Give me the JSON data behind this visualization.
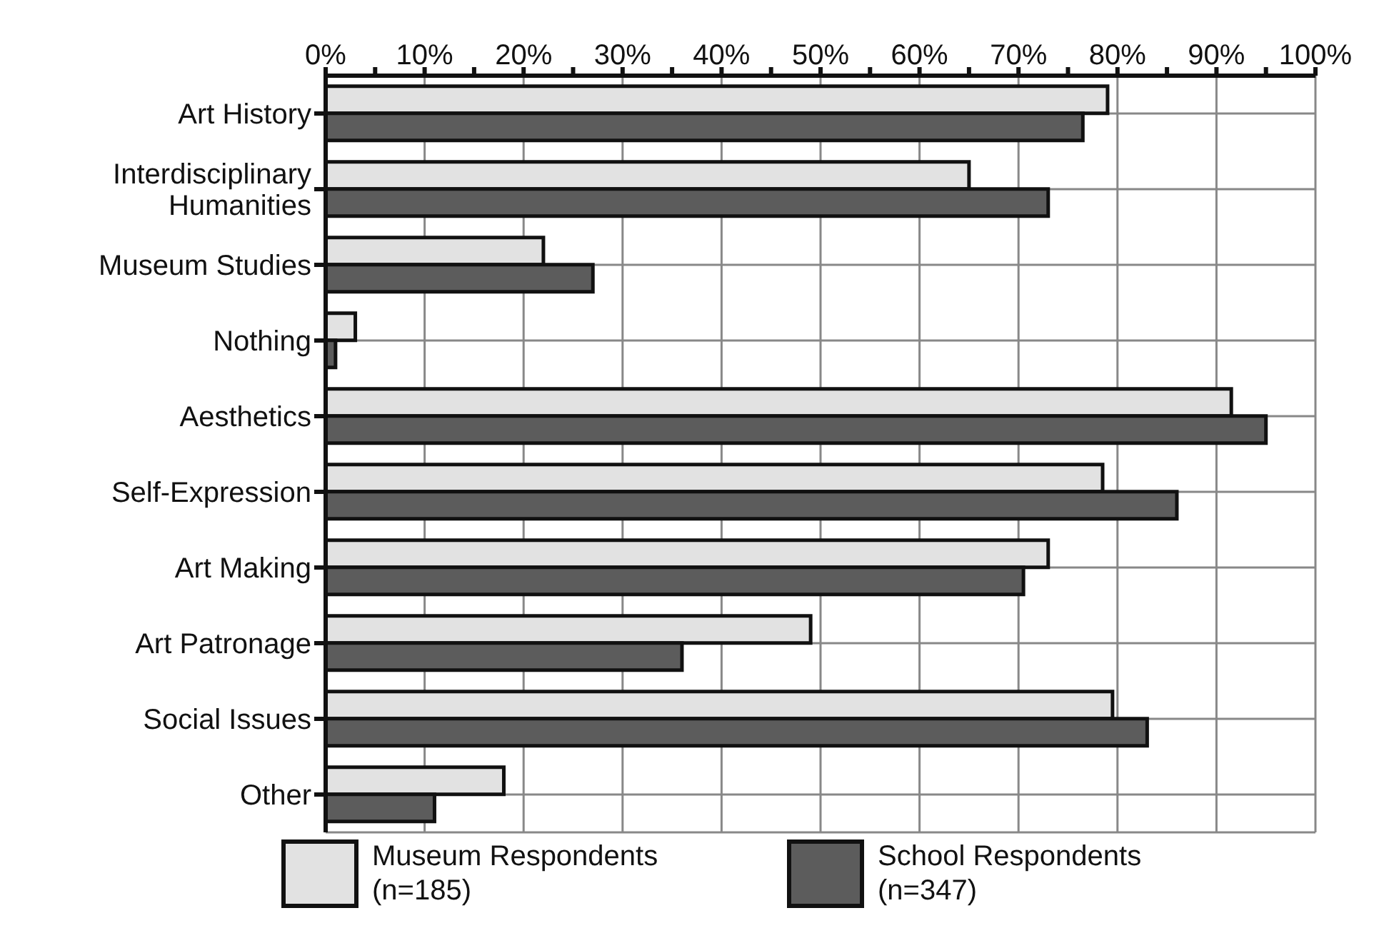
{
  "chart_data": {
    "type": "bar",
    "orientation": "horizontal",
    "categories": [
      "Art History",
      "Interdisciplinary Humanities",
      "Museum Studies",
      "Nothing",
      "Aesthetics",
      "Self-Expression",
      "Art Making",
      "Art Patronage",
      "Social Issues",
      "Other"
    ],
    "series": [
      {
        "name": "Museum Respondents (n=185)",
        "color": "#e2e2e2",
        "values": [
          79,
          65,
          22,
          3,
          91.5,
          78.5,
          73,
          49,
          79.5,
          18
        ]
      },
      {
        "name": "School Respondents (n=347)",
        "color": "#5c5c5c",
        "values": [
          76.5,
          73,
          27,
          1,
          95,
          86,
          70.5,
          36,
          83,
          11
        ]
      }
    ],
    "xlim": [
      0,
      100
    ],
    "xticks": [
      {
        "value": 0,
        "label": "0%"
      },
      {
        "value": 5,
        "label": null
      },
      {
        "value": 10,
        "label": "10%"
      },
      {
        "value": 15,
        "label": null
      },
      {
        "value": 20,
        "label": "20%"
      },
      {
        "value": 25,
        "label": null
      },
      {
        "value": 30,
        "label": "30%"
      },
      {
        "value": 35,
        "label": null
      },
      {
        "value": 40,
        "label": "40%"
      },
      {
        "value": 45,
        "label": null
      },
      {
        "value": 50,
        "label": "50%"
      },
      {
        "value": 55,
        "label": null
      },
      {
        "value": 60,
        "label": "60%"
      },
      {
        "value": 65,
        "label": null
      },
      {
        "value": 70,
        "label": "70%"
      },
      {
        "value": 75,
        "label": null
      },
      {
        "value": 80,
        "label": "80%"
      },
      {
        "value": 85,
        "label": null
      },
      {
        "value": 90,
        "label": "90%"
      },
      {
        "value": 95,
        "label": null
      },
      {
        "value": 100,
        "label": "100%"
      }
    ],
    "grid": true,
    "legend": "bottom"
  }
}
